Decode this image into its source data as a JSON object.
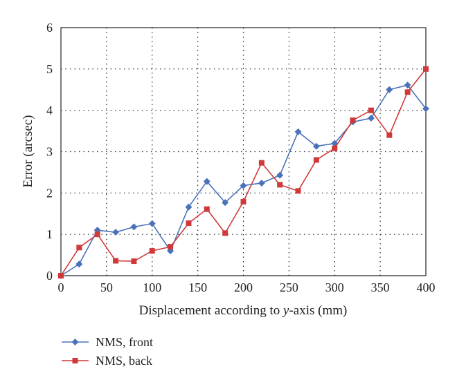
{
  "chart_data": {
    "type": "line",
    "title": "",
    "xlabel_pre": "Displacement according to ",
    "xlabel_var": "y",
    "xlabel_post": "-axis (mm)",
    "ylabel": "Error (arcsec)",
    "xlim": [
      0,
      400
    ],
    "ylim": [
      0,
      6
    ],
    "xticks": [
      0,
      50,
      100,
      150,
      200,
      250,
      300,
      350,
      400
    ],
    "yticks": [
      0,
      1,
      2,
      3,
      4,
      5,
      6
    ],
    "grid": true,
    "legend_position": "bottom-left",
    "x": [
      0,
      20,
      40,
      60,
      80,
      100,
      120,
      140,
      160,
      180,
      200,
      220,
      240,
      260,
      280,
      300,
      320,
      340,
      360,
      380,
      400
    ],
    "series": [
      {
        "name": "NMS, front",
        "color": "#4a72b8",
        "marker": "diamond",
        "values": [
          0,
          0.28,
          1.1,
          1.05,
          1.18,
          1.26,
          0.6,
          1.66,
          2.28,
          1.77,
          2.18,
          2.24,
          2.43,
          3.48,
          3.13,
          3.2,
          3.72,
          3.81,
          4.5,
          4.61,
          4.04
        ]
      },
      {
        "name": "NMS, back",
        "color": "#d0393a",
        "marker": "square",
        "values": [
          0,
          0.68,
          1.0,
          0.36,
          0.35,
          0.6,
          0.7,
          1.27,
          1.61,
          1.03,
          1.79,
          2.73,
          2.2,
          2.05,
          2.8,
          3.08,
          3.76,
          4.0,
          3.4,
          4.44,
          5.0
        ]
      }
    ]
  }
}
